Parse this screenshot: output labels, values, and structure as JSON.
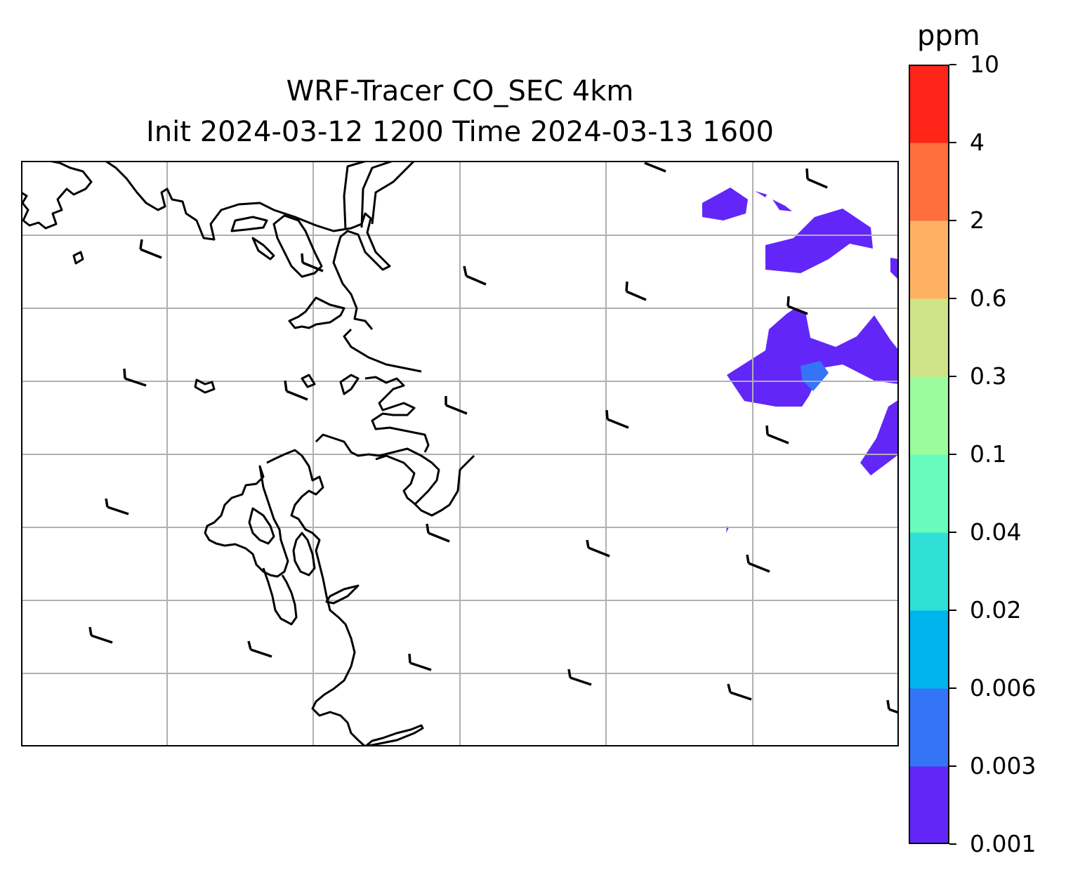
{
  "title_line1": "WRF-Tracer CO_SEC 4km",
  "title_line2": "Init 2024-03-12 1200 Time 2024-03-13 1600",
  "colorbar": {
    "unit": "ppm",
    "levels": [
      "0.001",
      "0.003",
      "0.006",
      "0.02",
      "0.04",
      "0.1",
      "0.3",
      "0.6",
      "2",
      "4",
      "10"
    ],
    "colors": [
      "#6226f8",
      "#3474f6",
      "#00b4ec",
      "#2fe0d6",
      "#67fcbb",
      "#9bfc9e",
      "#cfe486",
      "#ffb163",
      "#ff6e3c",
      "#ff2518"
    ]
  },
  "map": {
    "gridlines": true,
    "coastline_color": "#000000",
    "field_colors": {
      "low": "#6226f8",
      "mid": "#3474f6"
    }
  }
}
